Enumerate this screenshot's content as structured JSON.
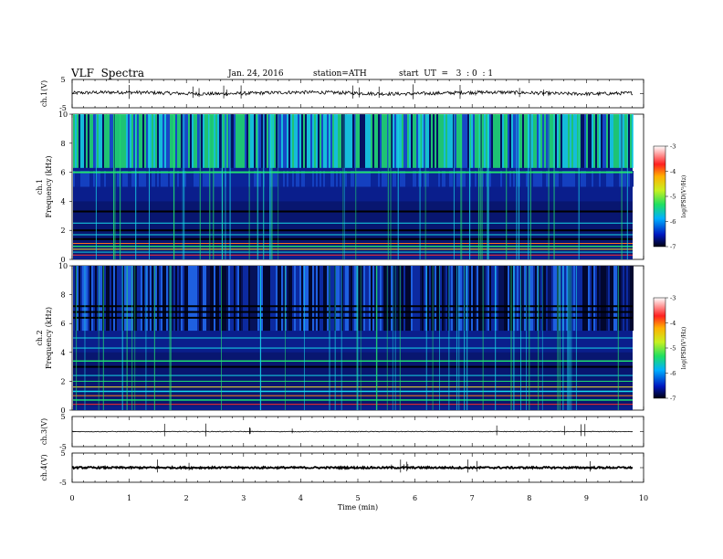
{
  "header": {
    "title": "VLF  Spectra",
    "date": "Jan. 24, 2016",
    "station": "station=ATH",
    "start": "start  UT  =   3  : 0  : 1"
  },
  "chart_data": [
    {
      "type": "line",
      "panel": "ch1-waveform",
      "ylabel": "ch.1(V)",
      "ylim": [
        -5,
        5
      ],
      "yticks": [
        "5",
        "-5"
      ],
      "xlim": [
        0,
        10
      ],
      "series": [
        {
          "values_description_level": 0.5
        }
      ]
    },
    {
      "type": "heatmap",
      "panel": "ch1-spectrogram",
      "ylabel_ch": "ch.1",
      "ylabel": "Frequency  (kHz)",
      "yticks": [
        "0",
        "2",
        "4",
        "6",
        "8",
        "10"
      ],
      "ylim": [
        0,
        10
      ],
      "xlim": [
        0,
        9.8
      ],
      "colorbar": {
        "label": "log(PSD(V²/Hz)",
        "ticks": [
          "-3",
          "-4",
          "-5",
          "-6",
          "-7"
        ],
        "range": [
          -7,
          -3
        ]
      }
    },
    {
      "type": "heatmap",
      "panel": "ch2-spectrogram",
      "ylabel_ch": "ch.2",
      "ylabel": "Frequency  (kHz)",
      "yticks": [
        "0",
        "2",
        "4",
        "6",
        "8",
        "10"
      ],
      "ylim": [
        0,
        10
      ],
      "xlim": [
        0,
        9.8
      ],
      "colorbar": {
        "label": "log(PSD(V²/Hz)",
        "ticks": [
          "-3",
          "-4",
          "-5",
          "-6",
          "-7"
        ],
        "range": [
          -7,
          -3
        ]
      }
    },
    {
      "type": "line",
      "panel": "ch3-waveform",
      "ylabel": "ch.3(V)",
      "ylim": [
        -5,
        5
      ],
      "yticks": [
        "5",
        "-5"
      ]
    },
    {
      "type": "line",
      "panel": "ch4-waveform",
      "ylabel": "ch.4(V)",
      "ylim": [
        -5,
        5
      ],
      "yticks": [
        "5",
        "-5"
      ]
    }
  ],
  "xaxis": {
    "label": "Time  (min)",
    "ticks": [
      "0",
      "1",
      "2",
      "3",
      "4",
      "5",
      "6",
      "7",
      "8",
      "9",
      "10"
    ],
    "range": [
      0,
      10
    ]
  },
  "colors": {
    "spec_bg": "#0a1e8c",
    "spec_dark": "#000014",
    "spec_green": "#22e070",
    "spec_cyan": "#18d8e8"
  }
}
